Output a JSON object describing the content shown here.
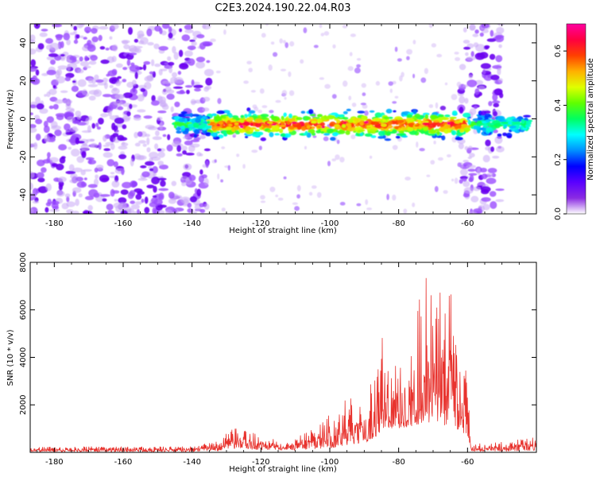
{
  "figure": {
    "title": "C2E3.2024.190.22.04.R03"
  },
  "colors": {
    "background": "#ffffff",
    "axis": "#000000",
    "snr_line": "#e8332e"
  },
  "chart_data": [
    {
      "type": "heatmap",
      "xlabel": "Height of straight line (km)",
      "ylabel": "Frequency (Hz)",
      "xlim": [
        -187,
        -40
      ],
      "ylim": [
        -50,
        50
      ],
      "x_ticks": [
        -180,
        -160,
        -140,
        -120,
        -100,
        -80,
        -60
      ],
      "y_ticks": [
        -40,
        -20,
        0,
        20,
        40
      ],
      "colorbar": {
        "label": "Normalized spectral amplitude",
        "range": [
          0.0,
          0.7
        ],
        "ticks": [
          0.0,
          0.2,
          0.4,
          0.6
        ],
        "colormap": [
          "#ffffff",
          "#8a2be2",
          "#5a00ff",
          "#0000ff",
          "#0090ff",
          "#00ffff",
          "#00ff60",
          "#60ff00",
          "#e0ff00",
          "#ffb000",
          "#ff4000",
          "#ff0040",
          "#ff00a0"
        ]
      },
      "signal_band": {
        "center_frequency": -3,
        "height_range": [
          -145,
          -42
        ],
        "strongest_range": [
          -135,
          -60
        ],
        "peak_amplitude": 0.7
      },
      "noise_regions": [
        {
          "height_range": [
            -187,
            -135
          ],
          "frequency_range": [
            -50,
            50
          ],
          "level": "dense"
        },
        {
          "height_range": [
            -62,
            -50
          ],
          "frequency_range": [
            -50,
            50
          ],
          "level": "dense"
        },
        {
          "height_range": [
            -135,
            -62
          ],
          "frequency_range": [
            -50,
            50
          ],
          "level": "sparse"
        }
      ]
    },
    {
      "type": "line",
      "xlabel": "Height of straight line (km)",
      "ylabel": "SNR (10 * v/v)",
      "xlim": [
        -187,
        -40
      ],
      "ylim": [
        0,
        8000
      ],
      "x_ticks": [
        -180,
        -160,
        -140,
        -120,
        -100,
        -80,
        -60
      ],
      "y_ticks": [
        2000,
        4000,
        6000,
        8000
      ],
      "series": [
        {
          "color": "#e8332e",
          "envelope": [
            {
              "x": -187,
              "low": 20,
              "high": 250
            },
            {
              "x": -140,
              "low": 20,
              "high": 250
            },
            {
              "x": -133,
              "low": 40,
              "high": 500
            },
            {
              "x": -128,
              "low": 100,
              "high": 1000
            },
            {
              "x": -124,
              "low": 100,
              "high": 1000
            },
            {
              "x": -118,
              "low": 80,
              "high": 550
            },
            {
              "x": -110,
              "low": 80,
              "high": 650
            },
            {
              "x": -103,
              "low": 150,
              "high": 1200
            },
            {
              "x": -98,
              "low": 200,
              "high": 1900
            },
            {
              "x": -95,
              "low": 300,
              "high": 2400
            },
            {
              "x": -90,
              "low": 400,
              "high": 1900
            },
            {
              "x": -87,
              "low": 600,
              "high": 3600
            },
            {
              "x": -85,
              "low": 900,
              "high": 5200
            },
            {
              "x": -80,
              "low": 1000,
              "high": 4300
            },
            {
              "x": -76,
              "low": 1100,
              "high": 5600
            },
            {
              "x": -73,
              "low": 1200,
              "high": 8000
            },
            {
              "x": -69,
              "low": 1200,
              "high": 6600
            },
            {
              "x": -65,
              "low": 1100,
              "high": 7800
            },
            {
              "x": -62,
              "low": 900,
              "high": 6000
            },
            {
              "x": -60,
              "low": 600,
              "high": 3000
            },
            {
              "x": -59,
              "low": 50,
              "high": 350
            },
            {
              "x": -50,
              "low": 40,
              "high": 450
            },
            {
              "x": -44,
              "low": 60,
              "high": 700
            },
            {
              "x": -40,
              "low": 60,
              "high": 600
            }
          ]
        }
      ]
    }
  ]
}
